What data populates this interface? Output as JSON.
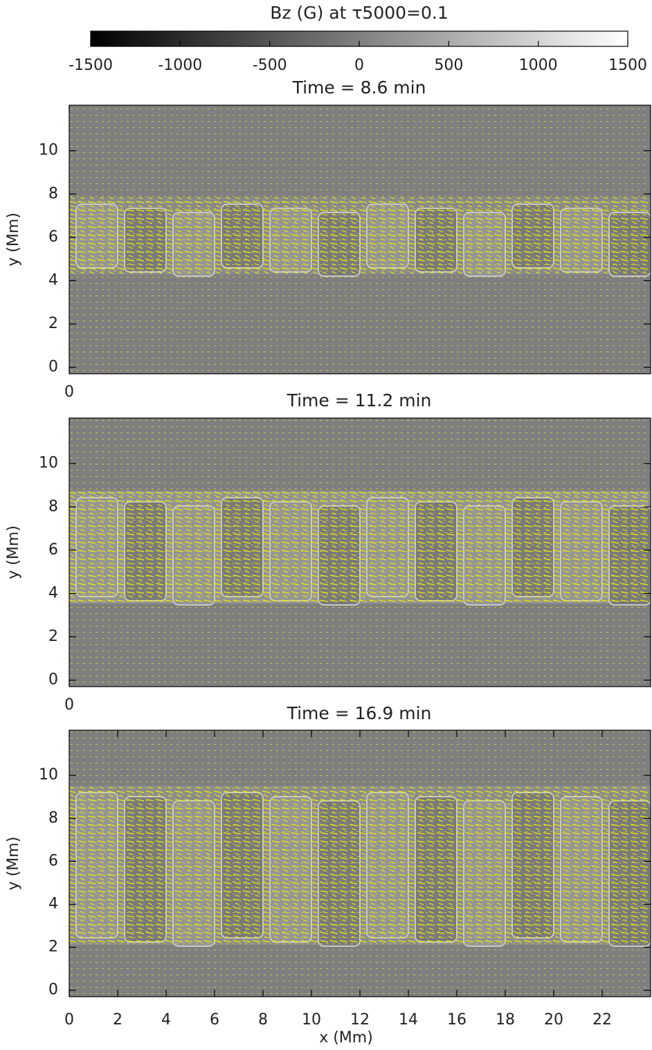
{
  "chart_data": [
    {
      "type": "colorbar",
      "title": "Bz (G) at τ5000=0.1",
      "colormap": [
        "#000000",
        "#ffffff"
      ],
      "xlim": [
        -1500,
        1500
      ],
      "xticks": [
        -1500,
        -1000,
        -500,
        0,
        500,
        1000,
        1500
      ]
    },
    {
      "type": "image",
      "title": "Time =   8.6 min",
      "ylabel": "y (Mm)",
      "xlim": [
        0,
        24
      ],
      "ylim": [
        -0.3,
        12.1
      ],
      "xticks": [
        0
      ],
      "yticks": [
        0,
        2,
        4,
        6,
        8,
        10
      ]
    },
    {
      "type": "image",
      "title": "Time = 11.2 min",
      "ylabel": "y (Mm)",
      "xlim": [
        0,
        24
      ],
      "ylim": [
        -0.3,
        12.1
      ],
      "xticks": [
        0
      ],
      "yticks": [
        0,
        2,
        4,
        6,
        8,
        10
      ]
    },
    {
      "type": "image",
      "title": "Time = 16.9 min",
      "ylabel": "y (Mm)",
      "xlabel": "x (Mm)",
      "xlim": [
        0,
        24
      ],
      "ylim": [
        -0.3,
        12.1
      ],
      "xticks": [
        0,
        2,
        4,
        6,
        8,
        10,
        12,
        14,
        16,
        18,
        20,
        22
      ],
      "yticks": [
        0,
        2,
        4,
        6,
        8,
        10
      ]
    }
  ]
}
